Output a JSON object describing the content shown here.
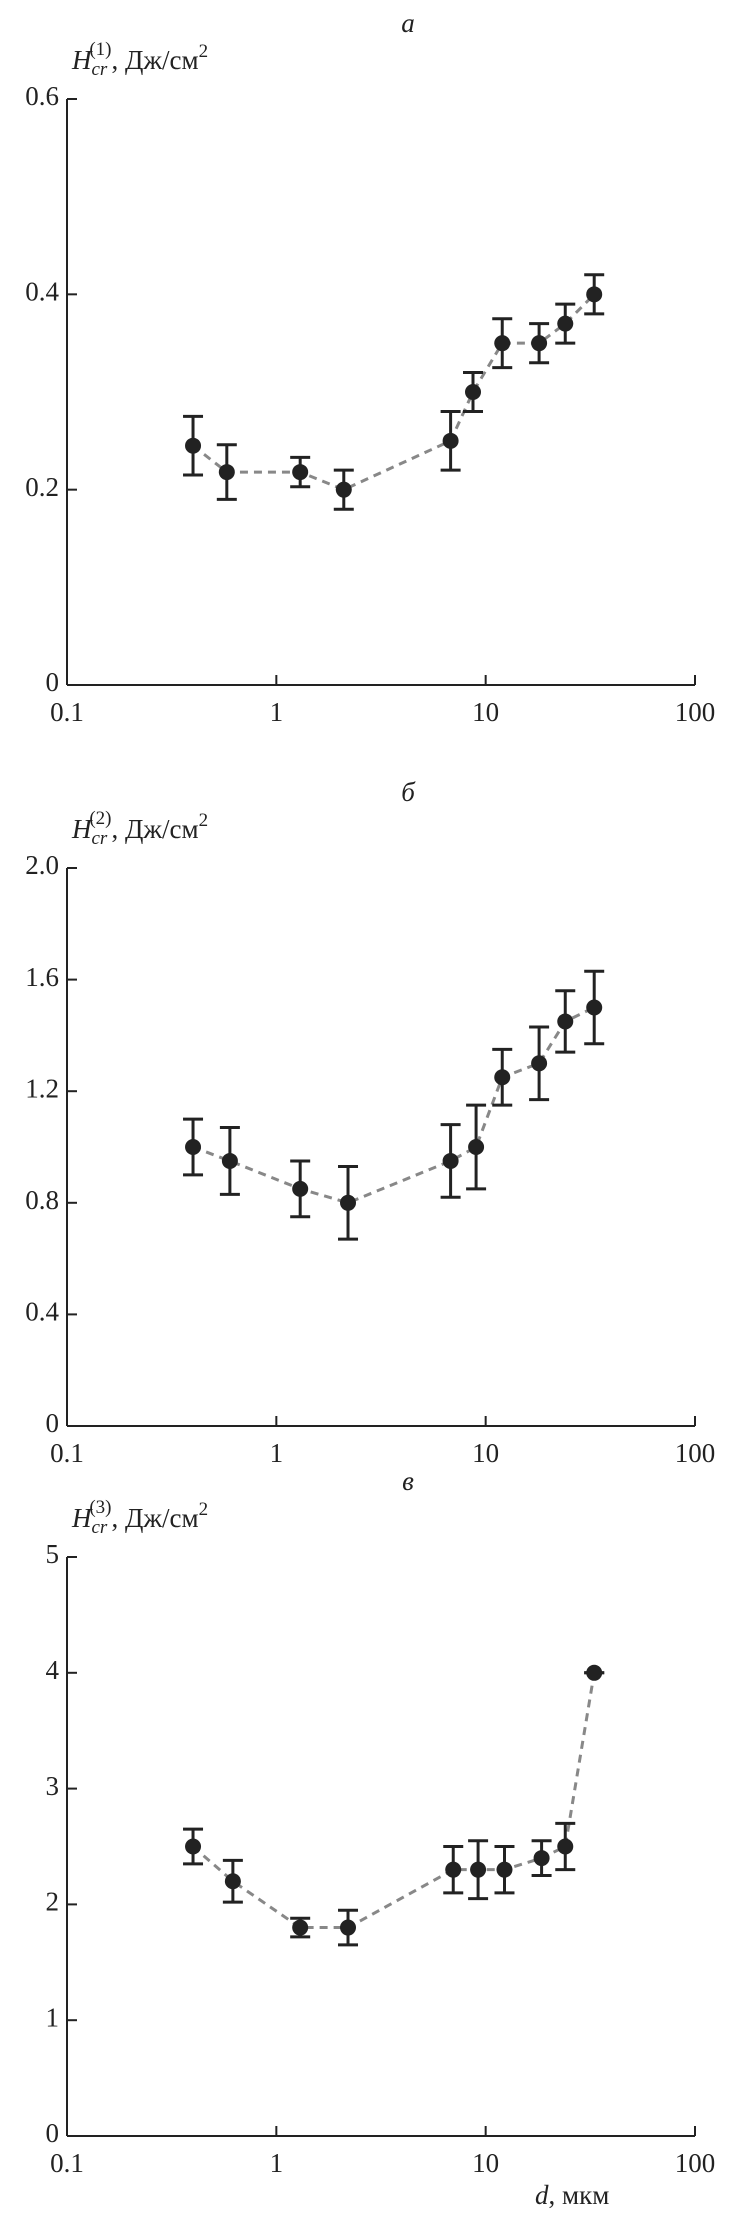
{
  "chart_data": [
    {
      "type": "scatter",
      "title": "а",
      "y_label": {
        "symbol": "H",
        "subscript": "cr",
        "superscript": "(1)",
        "unit": ", Дж/см",
        "unit_power": "2"
      },
      "x": [
        0.4,
        0.58,
        1.3,
        2.1,
        6.8,
        8.7,
        12,
        18,
        24,
        33
      ],
      "series": [
        {
          "color": "#222222",
          "line_color": "#888888",
          "values": [
            0.245,
            0.218,
            0.218,
            0.2,
            0.25,
            0.3,
            0.35,
            0.35,
            0.37,
            0.4
          ],
          "errors": [
            0.03,
            0.028,
            0.015,
            0.02,
            0.03,
            0.02,
            0.025,
            0.02,
            0.02,
            0.02
          ]
        }
      ],
      "xscale": "log",
      "xlim": [
        0.1,
        100
      ],
      "xticks": [
        0.1,
        1,
        10,
        100
      ],
      "ylim": [
        0,
        0.6
      ],
      "yticks": [
        0,
        0.2,
        0.4,
        0.6
      ]
    },
    {
      "type": "scatter",
      "title": "б",
      "y_label": {
        "symbol": "H",
        "subscript": "cr",
        "superscript": "(2)",
        "unit": ", Дж/см",
        "unit_power": "2"
      },
      "x": [
        0.4,
        0.6,
        1.3,
        2.2,
        6.8,
        9,
        12,
        18,
        24,
        33
      ],
      "series": [
        {
          "color": "#222222",
          "line_color": "#888888",
          "values": [
            1.0,
            0.95,
            0.85,
            0.8,
            0.95,
            1.0,
            1.25,
            1.3,
            1.45,
            1.5
          ],
          "errors": [
            0.1,
            0.12,
            0.1,
            0.13,
            0.13,
            0.15,
            0.1,
            0.13,
            0.11,
            0.13
          ]
        }
      ],
      "xscale": "log",
      "xlim": [
        0.1,
        100
      ],
      "xticks": [
        0.1,
        1,
        10,
        100
      ],
      "ylim": [
        0,
        2
      ],
      "yticks": [
        0,
        0.4,
        0.8,
        1.2,
        1.6,
        {
          "value": 2,
          "label": "2.0"
        }
      ]
    },
    {
      "type": "scatter",
      "title": "в",
      "y_label": {
        "symbol": "H",
        "subscript": "cr",
        "superscript": "(3)",
        "unit": ", Дж/см",
        "unit_power": "2"
      },
      "x_label": {
        "symbol": "d",
        "unit": ", мкм"
      },
      "x": [
        0.4,
        0.62,
        1.3,
        2.2,
        7,
        9.2,
        12.3,
        18.5,
        24,
        33
      ],
      "series": [
        {
          "color": "#222222",
          "line_color": "#888888",
          "values": [
            2.5,
            2.2,
            1.8,
            1.8,
            2.3,
            2.3,
            2.3,
            2.4,
            2.5,
            4.0
          ],
          "errors": [
            0.15,
            0.18,
            0.08,
            0.15,
            0.2,
            0.25,
            0.2,
            0.15,
            0.2,
            0
          ]
        }
      ],
      "xscale": "log",
      "xlim": [
        0.1,
        100
      ],
      "xticks": [
        0.1,
        1,
        10,
        100
      ],
      "ylim": [
        0,
        5
      ],
      "yticks": [
        0,
        1,
        2,
        3,
        4,
        5
      ]
    }
  ]
}
